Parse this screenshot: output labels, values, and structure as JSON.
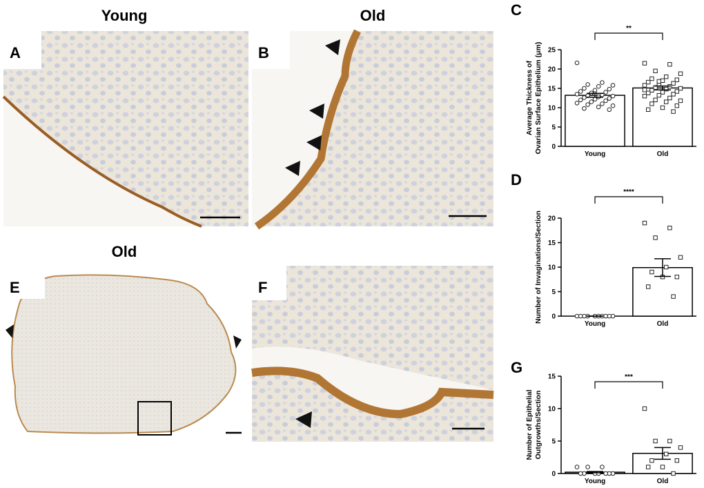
{
  "figure": {
    "titles": [
      "Young",
      "Old",
      "Old"
    ],
    "panel_labels": [
      "A",
      "B",
      "E",
      "F"
    ]
  },
  "chart_data": [
    {
      "type": "bar",
      "panel_label": "C",
      "ylabel": [
        "Average Thickness of",
        "Ovarian Surface Epithelium (μm)"
      ],
      "categories": [
        "Young",
        "Old"
      ],
      "values": [
        13.2,
        15.1
      ],
      "errors": [
        0.5,
        0.5
      ],
      "points": [
        [
          21.6,
          16.5,
          16,
          15.8,
          15.5,
          15,
          14.8,
          14.5,
          14.2,
          14,
          13.8,
          13.5,
          13.3,
          13.1,
          13,
          12.8,
          12.6,
          12.4,
          12.2,
          12,
          11.8,
          11.5,
          11.2,
          11,
          10.8,
          10.5,
          10.2,
          9.8,
          9.5,
          13.6
        ],
        [
          21.5,
          21.2,
          19.5,
          18.8,
          18,
          17.5,
          17.2,
          17,
          16.6,
          16.3,
          16,
          15.8,
          15.5,
          15.2,
          15,
          14.8,
          14.5,
          14.2,
          14,
          13.8,
          13.5,
          13.2,
          13,
          12.5,
          12,
          11.8,
          11.5,
          11,
          10.5,
          10,
          9.5,
          9,
          16.8,
          14.6
        ]
      ],
      "ylim": [
        0,
        25
      ],
      "yticks": [
        0,
        5,
        10,
        15,
        20,
        25
      ],
      "significance": "**",
      "color": "#ffffff"
    },
    {
      "type": "bar",
      "panel_label": "D",
      "ylabel": [
        "Number of Invaginations/Section"
      ],
      "categories": [
        "Young",
        "Old"
      ],
      "values": [
        0,
        9.9
      ],
      "errors": [
        0,
        1.8
      ],
      "points": [
        [
          0,
          0,
          0,
          0,
          0,
          0,
          0,
          0,
          0,
          0
        ],
        [
          19,
          18,
          16,
          12,
          10,
          9,
          8,
          8,
          6,
          4
        ]
      ],
      "ylim": [
        0,
        20
      ],
      "yticks": [
        0,
        5,
        10,
        15,
        20
      ],
      "significance": "****",
      "color": "#ffffff"
    },
    {
      "type": "bar",
      "panel_label": "G",
      "ylabel": [
        "Number of Epithelial",
        "Outgrowths/Section"
      ],
      "categories": [
        "Young",
        "Old"
      ],
      "values": [
        0.2,
        3.1
      ],
      "errors": [
        0.1,
        0.9
      ],
      "points": [
        [
          1,
          1,
          1,
          0,
          0,
          0,
          0,
          0,
          0,
          0
        ],
        [
          10,
          5,
          5,
          4,
          3,
          2,
          2,
          1,
          1,
          0
        ]
      ],
      "ylim": [
        0,
        15
      ],
      "yticks": [
        0,
        5,
        10,
        15
      ],
      "significance": "***",
      "color": "#ffffff"
    }
  ]
}
